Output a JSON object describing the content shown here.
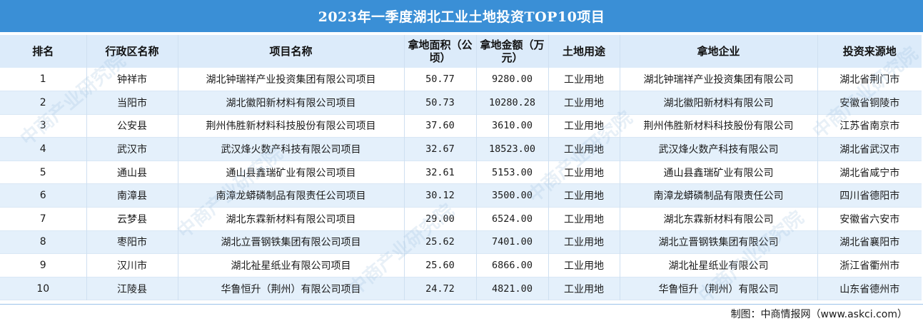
{
  "title": "2023年一季度湖北工业土地投资TOP10项目",
  "headers": {
    "rank": "排名",
    "district": "行政区名称",
    "project": "项目名称",
    "area": "拿地面积（公顷）",
    "amount": "拿地金额（万元）",
    "usage": "土地用途",
    "company": "拿地企业",
    "source": "投资来源地"
  },
  "rows": [
    {
      "rank": "1",
      "district": "钟祥市",
      "project": "湖北钟瑞祥产业投资集团有限公司项目",
      "area": "50.77",
      "amount": "9280.00",
      "usage": "工业用地",
      "company": "湖北钟瑞祥产业投资集团有限公司",
      "source": "湖北省荆门市"
    },
    {
      "rank": "2",
      "district": "当阳市",
      "project": "湖北徽阳新材料有限公司项目",
      "area": "50.73",
      "amount": "10280.28",
      "usage": "工业用地",
      "company": "湖北徽阳新材料有限公司",
      "source": "安徽省铜陵市"
    },
    {
      "rank": "3",
      "district": "公安县",
      "project": "荆州伟胜新材料科技股份有限公司项目",
      "area": "37.60",
      "amount": "3610.00",
      "usage": "工业用地",
      "company": "荆州伟胜新材料科技股份有限公司",
      "source": "江苏省南京市"
    },
    {
      "rank": "4",
      "district": "武汉市",
      "project": "武汉烽火数产科技有限公司项目",
      "area": "32.67",
      "amount": "18523.00",
      "usage": "工业用地",
      "company": "武汉烽火数产科技有限公司",
      "source": "湖北省武汉市"
    },
    {
      "rank": "5",
      "district": "通山县",
      "project": "通山县鑫瑞矿业有限公司项目",
      "area": "32.61",
      "amount": "5153.00",
      "usage": "工业用地",
      "company": "通山县鑫瑞矿业有限公司",
      "source": "湖北省咸宁市"
    },
    {
      "rank": "6",
      "district": "南漳县",
      "project": "南漳龙蟒磷制品有限责任公司项目",
      "area": "30.12",
      "amount": "3500.00",
      "usage": "工业用地",
      "company": "南漳龙蟒磷制品有限责任公司",
      "source": "四川省德阳市"
    },
    {
      "rank": "7",
      "district": "云梦县",
      "project": "湖北东霖新材料有限公司项目",
      "area": "29.00",
      "amount": "6524.00",
      "usage": "工业用地",
      "company": "湖北东霖新材料有限公司",
      "source": "安徽省六安市"
    },
    {
      "rank": "8",
      "district": "枣阳市",
      "project": "湖北立晋钢铁集团有限公司项目",
      "area": "25.62",
      "amount": "7401.00",
      "usage": "工业用地",
      "company": "湖北立晋钢铁集团有限公司",
      "source": "湖北省襄阳市"
    },
    {
      "rank": "9",
      "district": "汉川市",
      "project": "湖北祉星纸业有限公司项目",
      "area": "25.60",
      "amount": "6866.00",
      "usage": "工业用地",
      "company": "湖北祉星纸业有限公司",
      "source": "浙江省衢州市"
    },
    {
      "rank": "10",
      "district": "江陵县",
      "project": "华鲁恒升（荆州）有限公司项目",
      "area": "24.72",
      "amount": "4821.00",
      "usage": "工业用地",
      "company": "华鲁恒升（荆州）有限公司",
      "source": "山东省德州市"
    }
  ],
  "footer": "制图：中商情报网（www.askci.com）",
  "watermark": "中商产业研究院",
  "colors": {
    "title_bg": "#3a8fd6",
    "header_bg": "#dcebfa",
    "stripe_bg": "#e4f0fb"
  }
}
